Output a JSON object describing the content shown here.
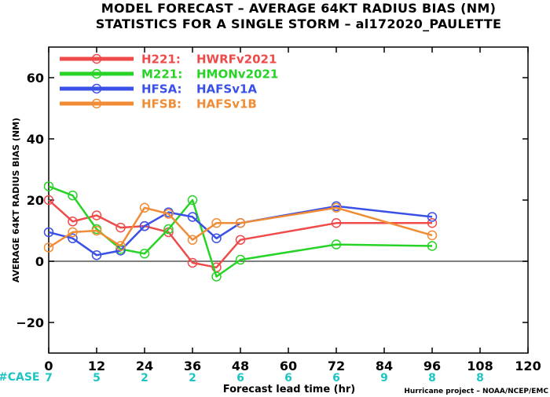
{
  "chart_data": {
    "type": "line",
    "title": "MODEL FORECAST – AVERAGE 64KT RADIUS BIAS (NM)",
    "subtitle": "STATISTICS FOR A SINGLE STORM – al172020_PAULETTE",
    "xlabel": "Forecast lead time (hr)",
    "ylabel": "AVERAGE 64KT RADIUS BIAS (NM)",
    "xlim": [
      0,
      120
    ],
    "ylim": [
      -30,
      70
    ],
    "xticks": [
      0,
      12,
      24,
      36,
      48,
      60,
      72,
      84,
      96,
      108,
      120
    ],
    "yticks": [
      -20,
      0,
      20,
      40,
      60
    ],
    "zero_line": true,
    "legend_position": "top-left",
    "credit": "Hurricane project – NOAA/NCEP/EMC",
    "case_label": "#CASE",
    "cases": [
      {
        "x": 0,
        "n": "7"
      },
      {
        "x": 12,
        "n": "5"
      },
      {
        "x": 24,
        "n": "2"
      },
      {
        "x": 36,
        "n": "2"
      },
      {
        "x": 48,
        "n": "6"
      },
      {
        "x": 60,
        "n": "6"
      },
      {
        "x": 72,
        "n": "6"
      },
      {
        "x": 84,
        "n": "9"
      },
      {
        "x": 96,
        "n": "8"
      },
      {
        "x": 108,
        "n": "8"
      }
    ],
    "series": [
      {
        "code": "H221:",
        "name": "HWRFv2021",
        "color": "#ef4b4b",
        "points": [
          [
            0,
            20
          ],
          [
            6,
            13
          ],
          [
            12,
            15
          ],
          [
            18,
            11
          ],
          [
            24,
            11.5
          ],
          [
            30,
            9.5
          ],
          [
            36,
            -0.5
          ],
          [
            42,
            -2
          ],
          [
            48,
            7
          ],
          [
            72,
            12.5
          ],
          [
            96,
            12.5
          ]
        ]
      },
      {
        "code": "M221:",
        "name": "HMONv2021",
        "color": "#28d328",
        "points": [
          [
            0,
            24.5
          ],
          [
            6,
            21.5
          ],
          [
            12,
            10.5
          ],
          [
            18,
            4
          ],
          [
            24,
            2.5
          ],
          [
            30,
            10.5
          ],
          [
            36,
            20
          ],
          [
            42,
            -5
          ],
          [
            48,
            0.5
          ],
          [
            72,
            5.5
          ],
          [
            96,
            5
          ]
        ]
      },
      {
        "code": "HFSA:",
        "name": "HAFSv1A",
        "color": "#3a50e6",
        "points": [
          [
            0,
            9.5
          ],
          [
            6,
            7.5
          ],
          [
            12,
            2
          ],
          [
            18,
            3.5
          ],
          [
            24,
            11.5
          ],
          [
            30,
            16
          ],
          [
            36,
            14.5
          ],
          [
            42,
            7.5
          ],
          [
            48,
            12.5
          ],
          [
            72,
            18
          ],
          [
            96,
            14.5
          ]
        ]
      },
      {
        "code": "HFSB:",
        "name": "HAFSv1B",
        "color": "#f08c35",
        "points": [
          [
            0,
            4.5
          ],
          [
            6,
            9.5
          ],
          [
            12,
            10
          ],
          [
            18,
            5
          ],
          [
            24,
            17.5
          ],
          [
            30,
            15.5
          ],
          [
            36,
            7
          ],
          [
            42,
            12.5
          ],
          [
            48,
            12.5
          ],
          [
            72,
            17.5
          ],
          [
            96,
            8.5
          ]
        ]
      }
    ],
    "case_color": "#1ec4c4",
    "case_label_color": "#1ec4c4"
  }
}
